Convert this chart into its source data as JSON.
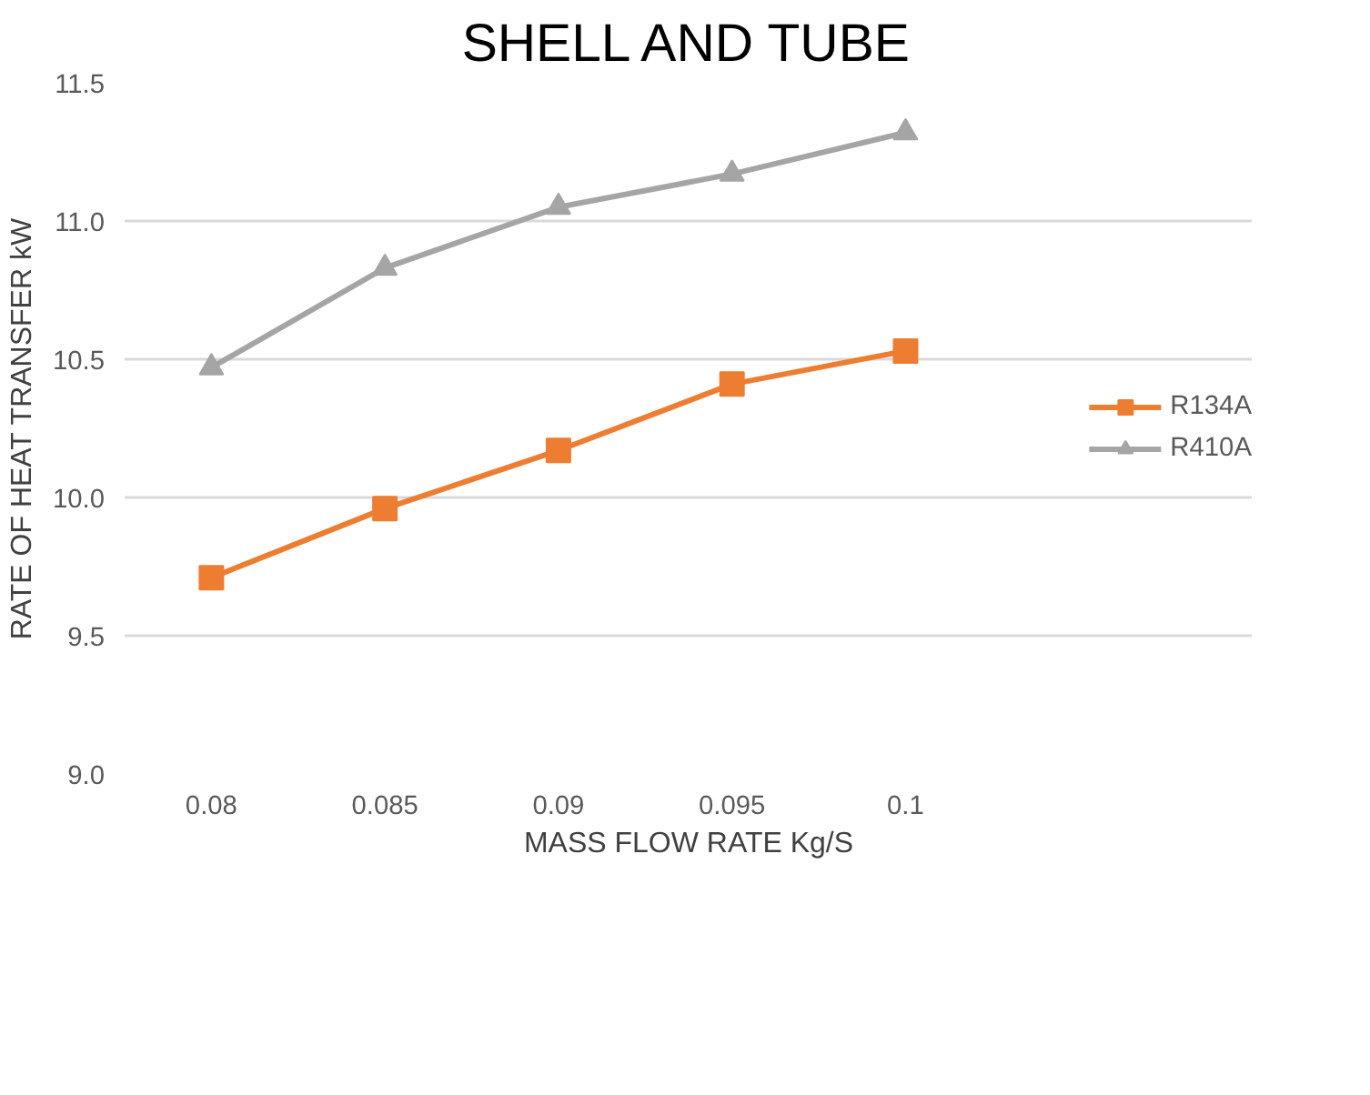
{
  "chart_data": {
    "type": "line",
    "title": "SHELL AND TUBE",
    "xlabel": "MASS FLOW RATE Kg/S",
    "ylabel": "RATE OF HEAT TRANSFER kW",
    "categories": [
      "0.08",
      "0.085",
      "0.09",
      "0.095",
      "0.1"
    ],
    "series": [
      {
        "name": "R134A",
        "color": "#ed7d31",
        "marker": "square",
        "values": [
          9.71,
          9.96,
          10.17,
          10.41,
          10.53
        ]
      },
      {
        "name": "R410A",
        "color": "#a5a5a5",
        "marker": "triangle",
        "values": [
          10.47,
          10.83,
          11.05,
          11.17,
          11.32
        ]
      }
    ],
    "ylim": [
      9.0,
      11.5
    ],
    "yticks": [
      {
        "value": 9.0,
        "label": "9.0"
      },
      {
        "value": 9.5,
        "label": "9.5"
      },
      {
        "value": 10.0,
        "label": "10.0"
      },
      {
        "value": 10.5,
        "label": "10.5"
      },
      {
        "value": 11.0,
        "label": "11.0"
      },
      {
        "value": 11.5,
        "label": "11.5"
      }
    ],
    "grid": "y",
    "legend": "right",
    "line_style": "solid"
  }
}
